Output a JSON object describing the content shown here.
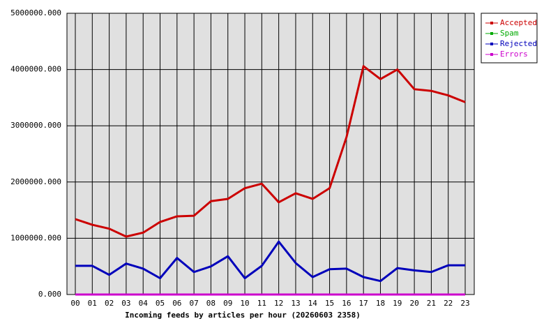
{
  "chart_data": {
    "type": "line",
    "xlabel": "Incoming feeds by articles per hour (20260603 2358)",
    "categories": [
      "00",
      "01",
      "02",
      "03",
      "04",
      "05",
      "06",
      "07",
      "08",
      "09",
      "10",
      "11",
      "12",
      "13",
      "14",
      "15",
      "16",
      "17",
      "18",
      "19",
      "20",
      "21",
      "22",
      "23"
    ],
    "series": [
      {
        "name": "Accepted",
        "color": "#cc0000",
        "values": [
          1340000,
          1240000,
          1170000,
          1030000,
          1100000,
          1290000,
          1390000,
          1400000,
          1660000,
          1700000,
          1890000,
          1970000,
          1640000,
          1800000,
          1700000,
          1890000,
          2800000,
          4060000,
          3830000,
          4000000,
          3650000,
          3620000,
          3540000,
          3420000
        ]
      },
      {
        "name": "Spam",
        "color": "#00aa00",
        "values": [
          0,
          0,
          0,
          0,
          0,
          0,
          0,
          0,
          0,
          0,
          0,
          0,
          0,
          0,
          0,
          0,
          0,
          0,
          0,
          0,
          0,
          0,
          0,
          0
        ]
      },
      {
        "name": "Rejected",
        "color": "#0000bb",
        "values": [
          510000,
          510000,
          350000,
          550000,
          460000,
          290000,
          650000,
          400000,
          500000,
          680000,
          290000,
          510000,
          940000,
          560000,
          310000,
          450000,
          460000,
          310000,
          240000,
          470000,
          430000,
          400000,
          520000,
          520000
        ]
      },
      {
        "name": "Errors",
        "color": "#cc00cc",
        "values": [
          0,
          0,
          0,
          0,
          0,
          0,
          0,
          0,
          0,
          0,
          0,
          0,
          0,
          0,
          0,
          0,
          0,
          0,
          0,
          0,
          0,
          0,
          0,
          0
        ]
      }
    ],
    "ylim": [
      0,
      5000000
    ],
    "yticks": [
      {
        "value": 0,
        "label": "0.000"
      },
      {
        "value": 1000000,
        "label": "1000000.000"
      },
      {
        "value": 2000000,
        "label": "2000000.000"
      },
      {
        "value": 3000000,
        "label": "3000000.000"
      },
      {
        "value": 4000000,
        "label": "4000000.000"
      },
      {
        "value": 5000000,
        "label": "5000000.000"
      }
    ],
    "grid": true,
    "legend": "top-right"
  }
}
